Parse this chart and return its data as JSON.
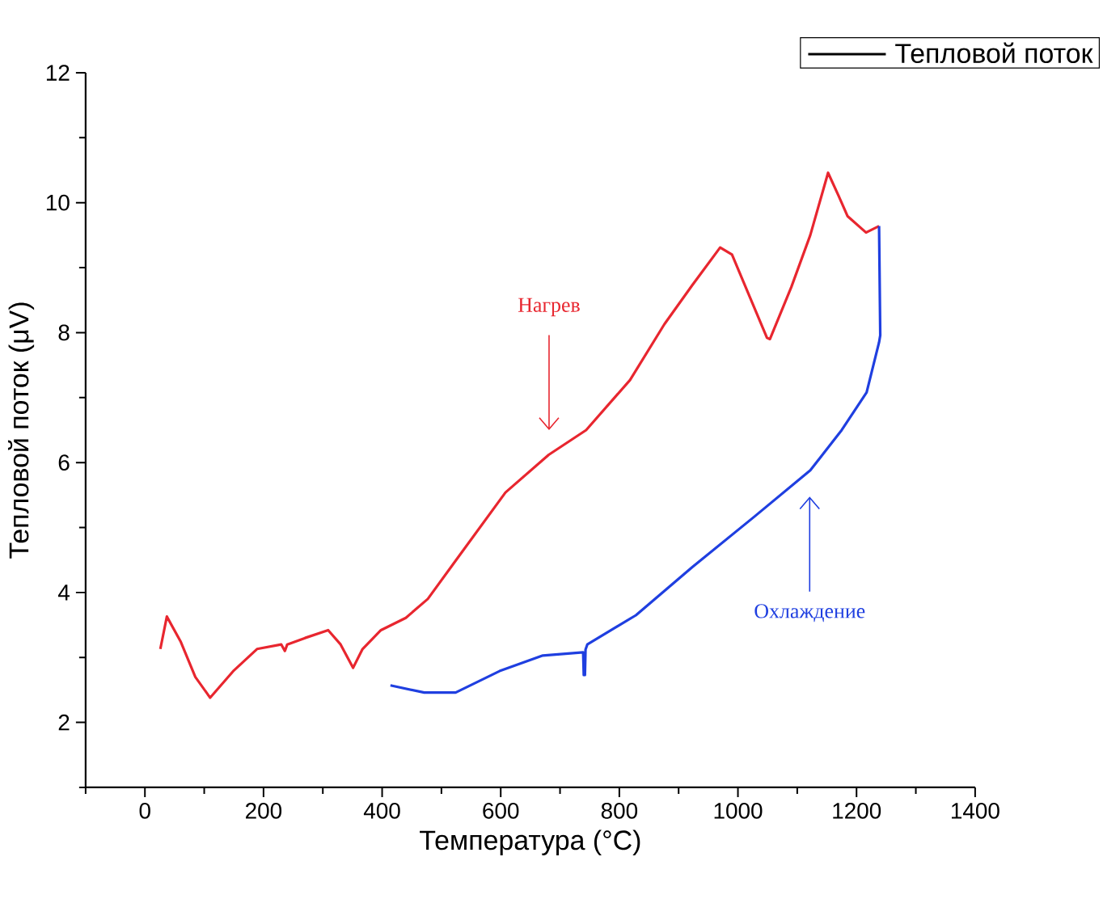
{
  "chart_data": {
    "type": "line",
    "xlabel": "Температура (°C)",
    "ylabel": "Тепловой поток (μV)",
    "legend_title": "Тепловой поток",
    "xlim": [
      -100,
      1400
    ],
    "ylim": [
      1,
      12
    ],
    "xticks": [
      {
        "value": -100,
        "label": null
      },
      0,
      {
        "value": 100,
        "label": null
      },
      200,
      {
        "value": 300,
        "label": null
      },
      400,
      {
        "value": 500,
        "label": null
      },
      600,
      {
        "value": 700,
        "label": null
      },
      800,
      {
        "value": 900,
        "label": null
      },
      1000,
      {
        "value": 1100,
        "label": null
      },
      1200,
      {
        "value": 1300,
        "label": null
      },
      1400
    ],
    "yticks": [
      {
        "value": 1,
        "label": null
      },
      2,
      {
        "value": 3,
        "label": null
      },
      4,
      {
        "value": 5,
        "label": null
      },
      6,
      {
        "value": 7,
        "label": null
      },
      8,
      {
        "value": 9,
        "label": null
      },
      10,
      {
        "value": 11,
        "label": null
      },
      12
    ],
    "series": [
      {
        "color": "#e8262f",
        "x": [
          26,
          37,
          60,
          85,
          110,
          150,
          189,
          230,
          236,
          240,
          270,
          309,
          330,
          351,
          367,
          398,
          440,
          477,
          524,
          608,
          681,
          744,
          818,
          876,
          923,
          970,
          990,
          1007,
          1049,
          1054,
          1090,
          1122,
          1152,
          1170,
          1185,
          1216,
          1238
        ],
        "values": [
          3.13,
          3.63,
          3.25,
          2.7,
          2.38,
          2.8,
          3.13,
          3.2,
          3.1,
          3.2,
          3.3,
          3.42,
          3.2,
          2.84,
          3.13,
          3.42,
          3.61,
          3.9,
          4.49,
          5.54,
          6.12,
          6.5,
          7.27,
          8.13,
          8.73,
          9.31,
          9.2,
          8.83,
          7.92,
          7.9,
          8.7,
          9.5,
          10.46,
          10.1,
          9.79,
          9.54,
          9.64
        ]
      },
      {
        "color": "#1f3fe0",
        "x": [
          1238,
          1240,
          1238,
          1217,
          1175,
          1122,
          1028,
          923,
          828,
          746,
          743,
          742,
          740,
          739,
          671,
          598,
          524,
          471,
          414
        ],
        "values": [
          9.64,
          7.96,
          7.85,
          7.08,
          6.5,
          5.88,
          5.17,
          4.39,
          3.65,
          3.2,
          3.12,
          2.73,
          2.73,
          3.08,
          3.03,
          2.79,
          2.46,
          2.46,
          2.57
        ]
      }
    ],
    "annotations": [
      "Нагрев",
      "Охлаждение"
    ]
  }
}
